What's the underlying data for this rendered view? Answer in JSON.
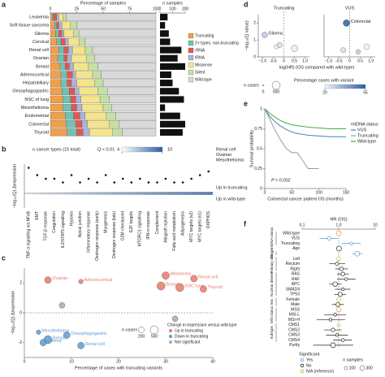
{
  "chart_data": [
    {
      "type": "bar",
      "stacked": true,
      "label": "a",
      "xlabel": "Percentage of samples",
      "categories": [
        "Leukemia",
        "Soft tissue sarcoma",
        "Glioma",
        "Cervical",
        "Renal cell",
        "Ovarian",
        "Breast",
        "Adrenocortical",
        "Hepatobiliary",
        "Oesophagogastric",
        "NSC of lung",
        "Mesothelioma",
        "Endometrial",
        "Colorectal",
        "Thyroid"
      ],
      "series": [
        {
          "name": "Truncating",
          "color": "#f0a04b",
          "values": [
            2,
            4,
            5,
            6,
            8,
            7,
            9,
            10,
            10,
            11,
            12,
            12,
            14,
            15,
            16
          ]
        },
        {
          "name": "2+ types, non-truncating",
          "color": "#6fc1b3",
          "values": [
            1,
            2,
            3,
            4,
            5,
            6,
            5,
            6,
            6,
            7,
            7,
            8,
            8,
            9,
            9
          ]
        },
        {
          "name": "rRNA",
          "color": "#e0584f",
          "values": [
            3,
            2,
            3,
            4,
            4,
            3,
            4,
            5,
            4,
            5,
            5,
            5,
            6,
            6,
            6
          ]
        },
        {
          "name": "tRNA",
          "color": "#a8b4dc",
          "values": [
            2,
            3,
            2,
            3,
            4,
            4,
            4,
            3,
            5,
            4,
            5,
            5,
            5,
            5,
            6
          ]
        },
        {
          "name": "Missense",
          "color": "#f5e58a",
          "values": [
            4,
            8,
            9,
            10,
            12,
            14,
            14,
            16,
            17,
            18,
            18,
            20,
            20,
            21,
            22
          ]
        },
        {
          "name": "Silent",
          "color": "#c5e0a5",
          "values": [
            3,
            6,
            5,
            6,
            7,
            8,
            9,
            8,
            8,
            9,
            9,
            8,
            9,
            9,
            9
          ]
        },
        {
          "name": "Wild-type",
          "color": "#d9d9d9",
          "values": [
            85,
            75,
            73,
            67,
            60,
            58,
            55,
            52,
            50,
            46,
            44,
            42,
            38,
            35,
            32
          ]
        }
      ],
      "xlim": [
        0,
        100
      ],
      "xticks": [
        0,
        25,
        50,
        75,
        100
      ]
    },
    {
      "type": "bar",
      "title": "n samples",
      "values": [
        60,
        40,
        70,
        80,
        170,
        140,
        200,
        90,
        100,
        150,
        190,
        40,
        160,
        200,
        180
      ],
      "color": "#111111",
      "xlim": [
        0,
        200
      ],
      "xticks": [
        0,
        100,
        200
      ]
    },
    {
      "type": "dot",
      "label": "b",
      "title": "n cancer types (15 total)",
      "colorbar_title": "Q < 0.01",
      "colorbar_ticks": [
        4,
        10
      ],
      "colorbar_colors": [
        "#ffffff",
        "#2b5fa3"
      ],
      "ylabel": "−log₁₀(Q) Δexpression",
      "categories": [
        "TNF-α signalling via NFκB",
        "EMT",
        "TGF-β response",
        "Coagulation",
        "IL2/STAT5 signalling",
        "Hypoxia",
        "Apical junction",
        "Inflammatory response",
        "Oestrogen response (early)",
        "Myogenesis",
        "Oestrogen response (late)",
        "G2M checkpoint",
        "E2F targets",
        "MTORC1 signalling",
        "IFN-α response",
        "Complement",
        "Allograft rejection",
        "Fatty acid metabolism",
        "Adipogenesis",
        "MYC targets (v2)",
        "MYC targets (v1)",
        "OXPHOS"
      ],
      "values": [
        7,
        5,
        4,
        4,
        3,
        5,
        3,
        4,
        3,
        5,
        3,
        4,
        3,
        4,
        3,
        3,
        4,
        3,
        3,
        4,
        5,
        6
      ],
      "ylim": [
        -4,
        8
      ],
      "annotations": [
        "Renal cell",
        "Ovarian",
        "Mesothelioma"
      ],
      "up_label": "Up in truncating",
      "down_label": "Up in wild-type"
    },
    {
      "type": "scatter",
      "label": "c",
      "xlabel": "Percentage of cases with truncating variants",
      "ylabel": "−log₁₀(Q) Δexpression",
      "xlim": [
        0,
        40
      ],
      "xticks": [
        0,
        10,
        20,
        30,
        40
      ],
      "ylim": [
        -3,
        3
      ],
      "yticks": [
        -2,
        0,
        2
      ],
      "size_title": "n cases",
      "size_legend": [
        200,
        500
      ],
      "legend_title": "Change in expression versus wild-type",
      "series": [
        {
          "name": "Up in truncating",
          "color": "#e8796b",
          "x": [
            5,
            12,
            30,
            36,
            29,
            33,
            38
          ],
          "values": [
            2.2,
            2.1,
            2.5,
            2.3,
            1.8,
            1.7,
            1.6
          ],
          "sizes": [
            300,
            100,
            400,
            300,
            500,
            500,
            300
          ],
          "labels": [
            "Ovarian",
            "Adrenocortical",
            "Melanoma",
            "Renal cell",
            "Breast",
            "NSC lung",
            "Thyroid"
          ]
        },
        {
          "name": "Down in truncating",
          "color": "#5b9bd5",
          "x": [
            3,
            9,
            5,
            4,
            12
          ],
          "values": [
            -1.3,
            -1.5,
            -1.8,
            -2.0,
            -2.2
          ],
          "sizes": [
            100,
            300,
            500,
            300,
            300
          ],
          "labels": [
            "Mesothelioma",
            "Oesophagogastric",
            "Breast",
            "Glioma",
            "Renal cell"
          ]
        },
        {
          "name": "Not significant",
          "color": "#aaaaaa",
          "x": [
            8,
            32
          ],
          "values": [
            0.5,
            -0.4
          ],
          "sizes": [
            200,
            200
          ],
          "labels": [
            null,
            null
          ]
        }
      ]
    },
    {
      "type": "scatter",
      "label": "d",
      "ylabel": "−log₁₀(Q value)",
      "xlabel": "log(HR) (OS compared with wild-type)",
      "xlim": [
        -1.2,
        1.2
      ],
      "xticks": [
        {
          "value": -1,
          "label": "−1.0"
        },
        -0.5,
        0,
        0.5,
        {
          "value": 1,
          "label": "1.0"
        }
      ],
      "ylim": [
        0,
        2.5
      ],
      "yticks": [
        0,
        1,
        2
      ],
      "panels": [
        {
          "title": "Truncating",
          "series": [
            {
              "x": [
                -0.9,
                -0.35,
                -0.2,
                0.5
              ],
              "values": [
                1.3,
                0.6,
                0.7,
                0.5
              ],
              "sizes": [
                200,
                100,
                150,
                300
              ],
              "pct": [
                30,
                20,
                25,
                22
              ],
              "labels": [
                "Glioma",
                null,
                null,
                null
              ]
            }
          ]
        },
        {
          "title": "VUS",
          "series": [
            {
              "x": [
                -0.15,
                -0.3,
                0.4,
                0.8
              ],
              "values": [
                2.0,
                0.4,
                0.3,
                0.6
              ],
              "sizes": [
                300,
                150,
                100,
                200
              ],
              "pct": [
                55,
                25,
                30,
                20
              ],
              "labels": [
                "Colorectal",
                null,
                null,
                null
              ]
            }
          ]
        }
      ],
      "size_title": "n cases",
      "size_legend": [
        0,
        500
      ],
      "color_title": "Percentage cases with variant",
      "color_legend": [
        20,
        55
      ],
      "color_range": [
        "#eef3fa",
        "#2b5fa3"
      ]
    },
    {
      "type": "line",
      "label": "e",
      "xlabel": "Colorectal cancer patient OS (months)",
      "ylabel": "Survival probability",
      "x": [
        0,
        10,
        20,
        30,
        40,
        50,
        60,
        80,
        100,
        120,
        150
      ],
      "series": [
        {
          "name": "VUS",
          "color": "#4a7fc1",
          "values": [
            1,
            0.9,
            0.83,
            0.78,
            0.74,
            0.71,
            0.69,
            0.67,
            0.66,
            0.65,
            0.65
          ]
        },
        {
          "name": "Truncating",
          "color": "#9a9a9a",
          "values": [
            1,
            0.86,
            0.72,
            0.6,
            0.5,
            0.45,
            0.45,
            0.25,
            0.25,
            null,
            null
          ]
        },
        {
          "name": "Wild-type",
          "color": "#3cb043",
          "values": [
            1,
            0.94,
            0.89,
            0.85,
            0.82,
            0.8,
            0.79,
            0.77,
            0.76,
            0.75,
            0.75
          ]
        }
      ],
      "xlim": [
        0,
        150
      ],
      "xticks": [
        0,
        50,
        100,
        150
      ],
      "ylim": [
        0,
        1
      ],
      "yticks": [
        0,
        0.25,
        0.5,
        0.75,
        1
      ],
      "legend_title": "mtDNA status",
      "annotation": "P = 0.002"
    },
    {
      "type": "forest",
      "label": "f",
      "title": "HR (OS)",
      "log": true,
      "xlim": [
        0.1,
        10
      ],
      "xticks": [
        0.1,
        {
          "value": 1,
          "label": "1.0"
        },
        10
      ],
      "rows": [
        {
          "label": "Wild-type",
          "hr": 1,
          "status": "N/A (reference)",
          "n": 300
        },
        {
          "label": "VUS",
          "hr": 0.55,
          "lo": 0.3,
          "hi": 0.95,
          "status": "Yes",
          "n": 150
        },
        {
          "label": "Truncating",
          "hr": 2.2,
          "lo": 1.2,
          "hi": 4.0,
          "status": "Yes",
          "n": 50
        },
        {
          "label": "Age",
          "hr": 1.02,
          "lo": 0.99,
          "hi": 1.05,
          "status": "No",
          "n": 300
        },
        {
          "label": null,
          "hr": 3.2,
          "lo": 2.3,
          "hi": 4.5,
          "status": "Yes",
          "n": 300
        },
        {
          "label": "Left",
          "hr": 1,
          "status": "N/A (reference)",
          "n": 150
        },
        {
          "label": "Rectum",
          "hr": 0.9,
          "lo": 0.55,
          "hi": 1.5,
          "status": "No",
          "n": 100
        },
        {
          "label": "Right",
          "hr": 1.2,
          "lo": 0.8,
          "hi": 1.8,
          "status": "No",
          "n": 120
        },
        {
          "label": "RAS",
          "hr": 1.3,
          "lo": 0.9,
          "hi": 1.9,
          "status": "No",
          "n": 150
        },
        {
          "label": "RAF",
          "hr": 1.6,
          "lo": 0.9,
          "hi": 2.9,
          "status": "No",
          "n": 60
        },
        {
          "label": "APC",
          "hr": 0.8,
          "lo": 0.55,
          "hi": 1.2,
          "status": "No",
          "n": 250
        },
        {
          "label": "SMAD4",
          "hr": 1.3,
          "lo": 0.8,
          "hi": 2.1,
          "status": "No",
          "n": 60
        },
        {
          "label": "TP53",
          "hr": 1.1,
          "lo": 0.75,
          "hi": 1.6,
          "status": "No",
          "n": 200
        },
        {
          "label": "Female",
          "hr": 1,
          "status": "N/A (reference)",
          "n": 150
        },
        {
          "label": "Male",
          "hr": 0.95,
          "lo": 0.65,
          "hi": 1.4,
          "status": "No",
          "n": 170
        },
        {
          "label": "MSS",
          "hr": 1,
          "status": "N/A (reference)",
          "n": 250
        },
        {
          "label": "MSI-L",
          "hr": 0.8,
          "lo": 0.4,
          "hi": 1.6,
          "status": "No",
          "n": 60
        },
        {
          "label": "MSI-H",
          "hr": 0.6,
          "lo": 0.25,
          "hi": 1.5,
          "status": "No",
          "n": 50
        },
        {
          "label": "CMS1",
          "hr": 1,
          "status": "N/A (reference)",
          "n": 60
        },
        {
          "label": "CMS2",
          "hr": 0.7,
          "lo": 0.4,
          "hi": 1.2,
          "status": "No",
          "n": 120
        },
        {
          "label": "CMS3",
          "hr": 0.9,
          "lo": 0.45,
          "hi": 1.8,
          "status": "No",
          "n": 50
        },
        {
          "label": "CMS4",
          "hr": 1.3,
          "lo": 0.7,
          "hi": 2.3,
          "status": "No",
          "n": 80
        },
        {
          "label": "Purity",
          "hr": 0.7,
          "lo": 0.2,
          "hi": 2.5,
          "status": "No",
          "n": 300
        }
      ],
      "groups": [
        {
          "name": "mtDNA status",
          "count": 3
        },
        {
          "name": null,
          "count": 1
        },
        {
          "name": "Stage",
          "count": 1
        },
        {
          "name": "Primary site",
          "count": 3
        },
        {
          "name": "Nuclear drivers",
          "count": 5
        },
        {
          "name": "Sex",
          "count": 2
        },
        {
          "name": "MSI status",
          "count": 3
        },
        {
          "name": "Subtype",
          "count": 4
        },
        {
          "name": null,
          "count": 1
        }
      ],
      "legend_title": "Significant",
      "legend": [
        {
          "name": "Yes",
          "color": "#5b9bd5"
        },
        {
          "name": "No",
          "color": "#222222"
        },
        {
          "name": "N/A (reference)",
          "color": "#d9a441"
        }
      ],
      "size_title": "n samples",
      "size_legend": [
        100,
        300
      ]
    }
  ]
}
